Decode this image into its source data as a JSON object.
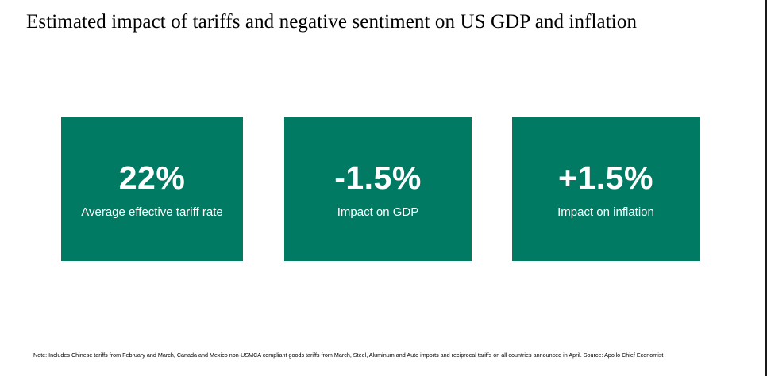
{
  "slide": {
    "title": "Estimated impact of  tariffs and negative sentiment on US GDP and inflation",
    "cards": [
      {
        "value": "22%",
        "label": "Average effective tariff rate"
      },
      {
        "value": "-1.5%",
        "label": "Impact on GDP"
      },
      {
        "value": "+1.5%",
        "label": "Impact on inflation"
      }
    ],
    "note": "Note: Includes Chinese tariffs from February and March, Canada and Mexico non-USMCA compliant goods tariffs from March, Steel, Aluminum and Auto imports and reciprocal tariffs on all countries announced in April. Source: Apollo Chief Economist"
  },
  "colors": {
    "card_background": "#007A63",
    "card_text": "#FFFFFF",
    "title_text": "#000000"
  }
}
